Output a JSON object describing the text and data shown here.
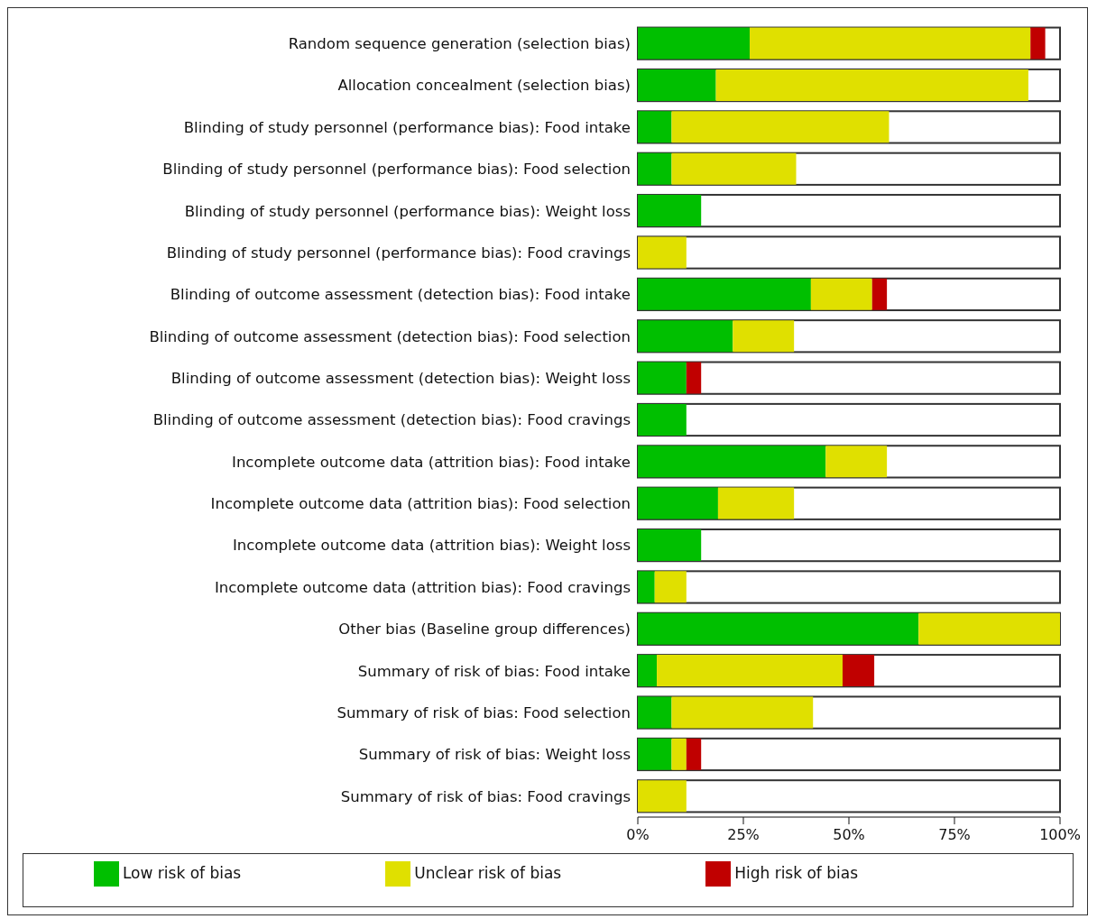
{
  "chart_data": {
    "type": "bar",
    "orientation": "horizontal",
    "stacked": true,
    "categories": [
      "Random sequence generation (selection bias)",
      "Allocation concealment (selection bias)",
      "Blinding of study personnel (performance bias): Food intake",
      "Blinding of study personnel (performance bias): Food selection",
      "Blinding of study personnel (performance bias): Weight loss",
      "Blinding of study personnel (performance bias): Food cravings",
      "Blinding of outcome assessment (detection bias): Food intake",
      "Blinding of outcome assessment (detection bias): Food selection",
      "Blinding of outcome assessment (detection bias): Weight loss",
      "Blinding of outcome assessment (detection bias): Food cravings",
      "Incomplete outcome data (attrition bias): Food intake",
      "Incomplete outcome data (attrition bias): Food selection",
      "Incomplete outcome data (attrition bias): Weight loss",
      "Incomplete outcome data (attrition bias): Food cravings",
      "Other bias (Baseline group differences)",
      "Summary of risk of bias: Food intake",
      "Summary of risk of bias: Food selection",
      "Summary of risk of bias: Weight loss",
      "Summary of risk of bias: Food cravings"
    ],
    "series": [
      {
        "name": "Low risk of bias",
        "color": "#00bf00",
        "values": [
          26.5,
          18.5,
          8,
          8,
          15,
          0,
          41,
          22.5,
          11.5,
          11.5,
          44.5,
          19,
          15,
          4,
          66.5,
          4.5,
          8,
          8,
          0
        ]
      },
      {
        "name": "Unclear risk of bias",
        "color": "#e0e000",
        "values": [
          66.5,
          74,
          51.5,
          29.5,
          0,
          11.5,
          14.5,
          14.5,
          0,
          0,
          14.5,
          18,
          0,
          7.5,
          33.5,
          44,
          33.5,
          3.5,
          11.5
        ]
      },
      {
        "name": "High risk of bias",
        "color": "#c00000",
        "values": [
          3.5,
          0,
          0,
          0,
          0,
          0,
          3.5,
          0,
          3.5,
          0,
          0,
          0,
          0,
          0,
          0,
          7.5,
          0,
          3.5,
          0
        ]
      }
    ],
    "xlim": [
      0,
      100
    ],
    "xticks": [
      {
        "value": 0,
        "label": "0%"
      },
      {
        "value": 25,
        "label": "25%"
      },
      {
        "value": 50,
        "label": "50%"
      },
      {
        "value": 75,
        "label": "75%"
      },
      {
        "value": 100,
        "label": "100%"
      }
    ],
    "grid": false,
    "legend": "bottom"
  }
}
